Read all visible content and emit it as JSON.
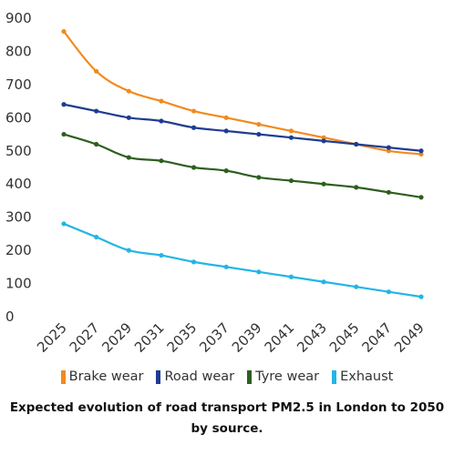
{
  "caption": "Expected evolution of road transport PM2.5 in London to 2050 by source.",
  "chart_data": {
    "type": "line",
    "title": "",
    "xlabel": "",
    "ylabel": "",
    "x": [
      "2025",
      "2027",
      "2029",
      "2031",
      "2035",
      "2037",
      "2039",
      "2041",
      "2043",
      "2045",
      "2047",
      "2049"
    ],
    "ylim": [
      0,
      900
    ],
    "yticks": [
      0,
      100,
      200,
      300,
      400,
      500,
      600,
      700,
      800,
      900
    ],
    "grid": false,
    "legend_position": "bottom",
    "series": [
      {
        "name": "Brake wear",
        "color": "#f28a1e",
        "values": [
          860,
          740,
          680,
          650,
          620,
          600,
          580,
          560,
          540,
          520,
          500,
          490
        ]
      },
      {
        "name": "Road wear",
        "color": "#1f3c91",
        "values": [
          640,
          620,
          600,
          590,
          570,
          560,
          550,
          540,
          530,
          520,
          510,
          500
        ]
      },
      {
        "name": "Tyre wear",
        "color": "#2e5e1f",
        "values": [
          550,
          520,
          480,
          470,
          450,
          440,
          420,
          410,
          400,
          390,
          375,
          360
        ]
      },
      {
        "name": "Exhaust",
        "color": "#22b5e6",
        "values": [
          280,
          240,
          200,
          185,
          165,
          150,
          135,
          120,
          105,
          90,
          75,
          60
        ]
      }
    ]
  }
}
